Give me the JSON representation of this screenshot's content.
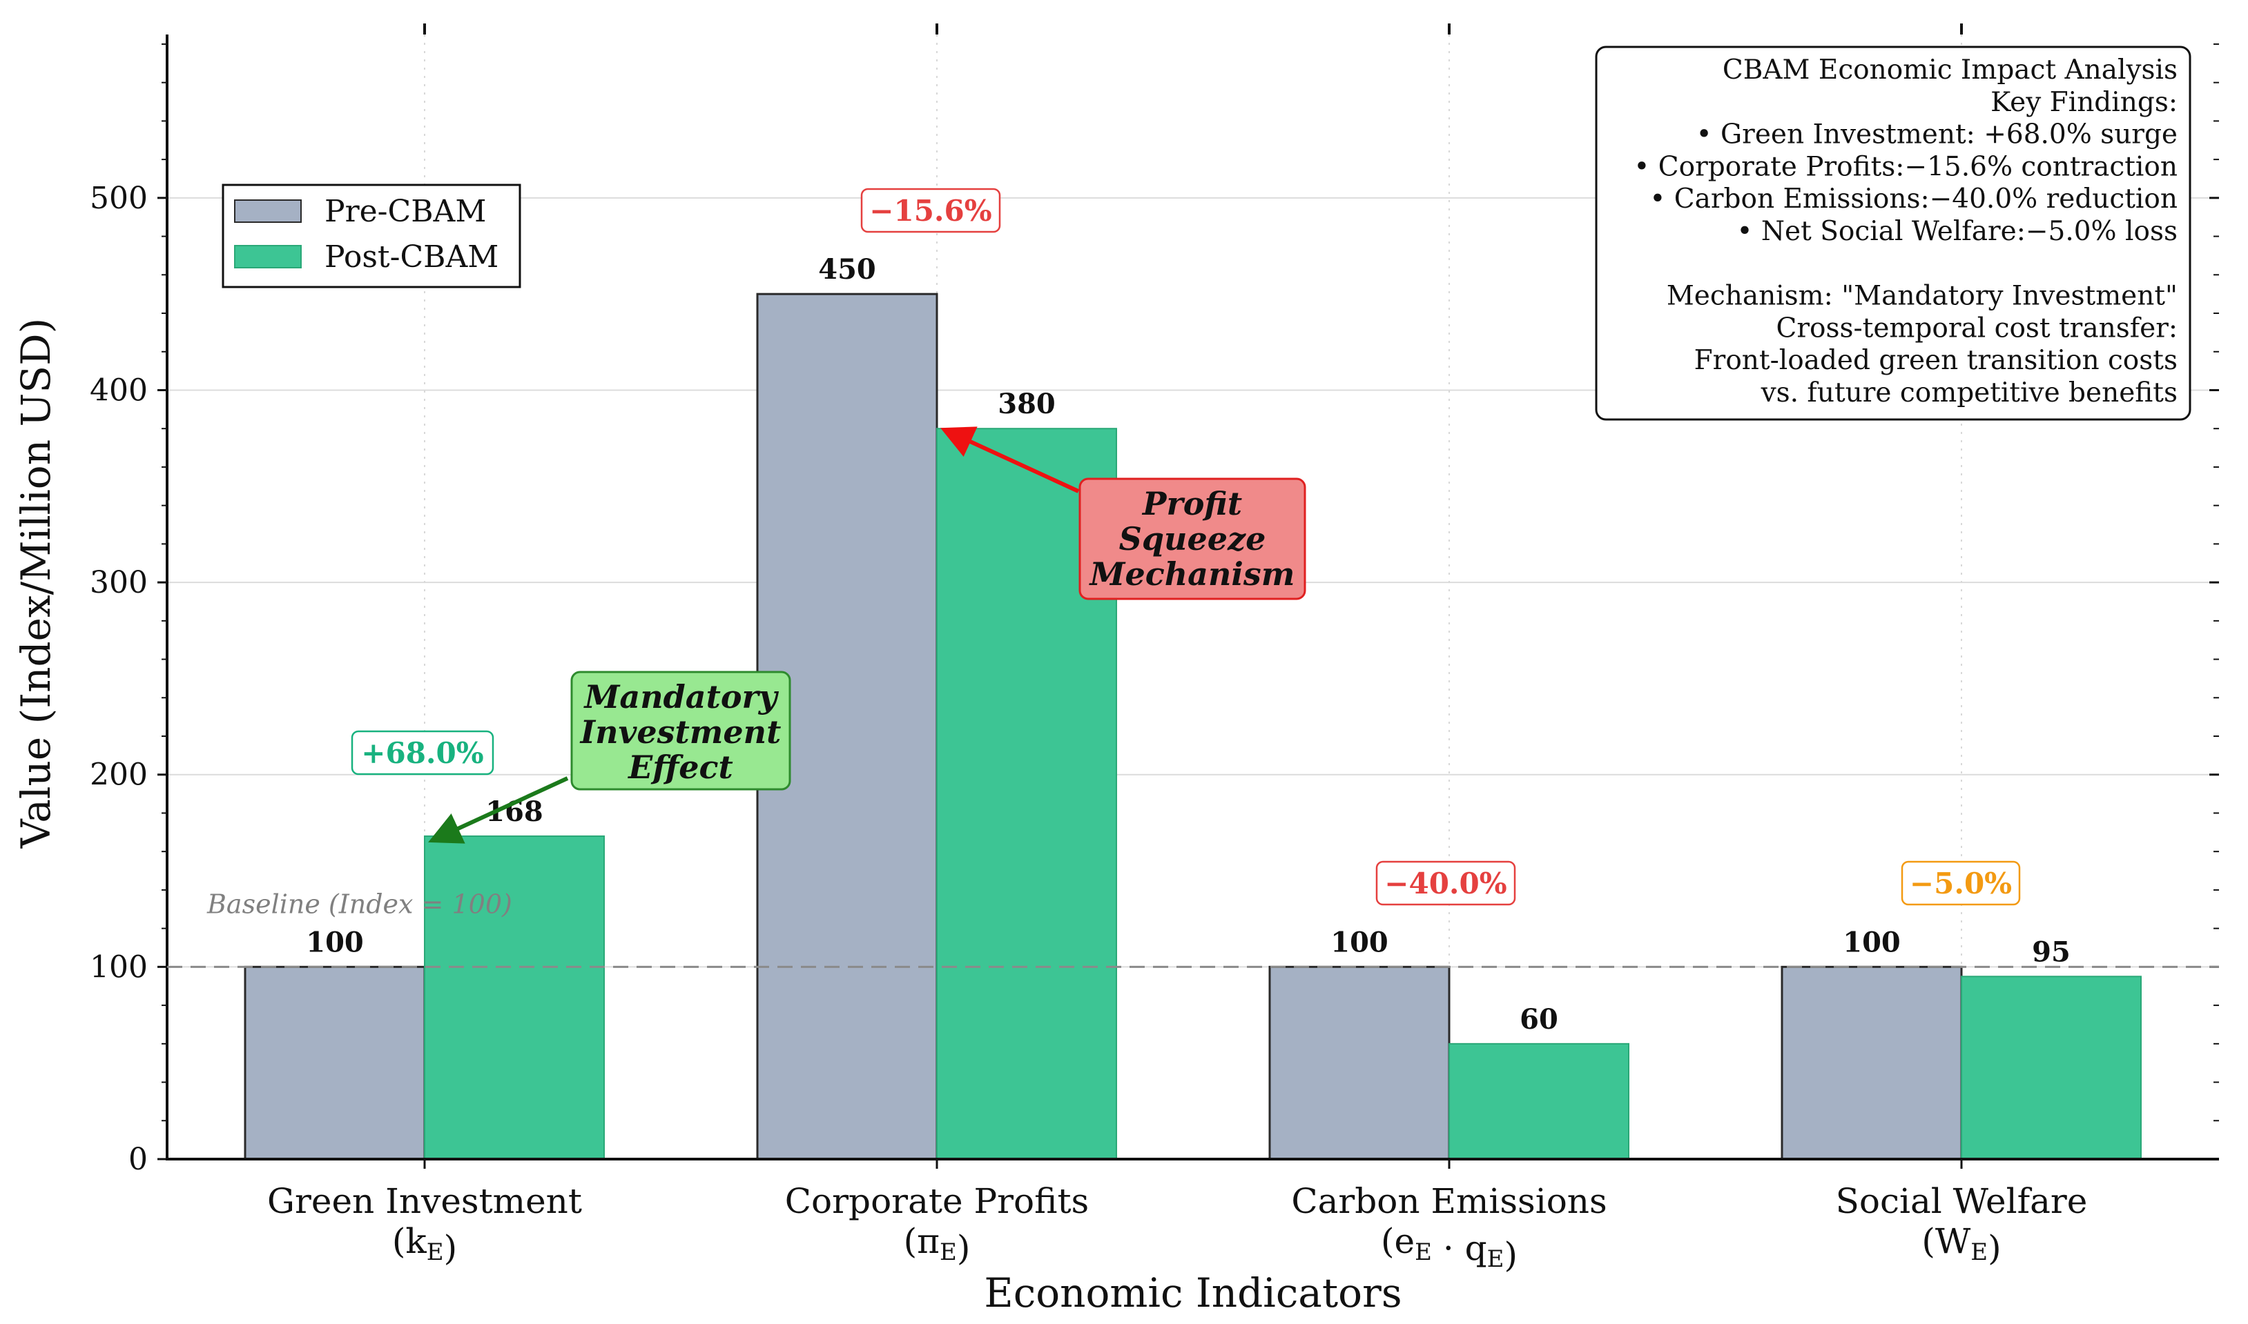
{
  "chart_data": {
    "type": "bar",
    "categories": [
      {
        "name": "Green Investment",
        "symbol": "k",
        "sub": "E"
      },
      {
        "name": "Corporate Profits",
        "symbol": "π",
        "sub": "E"
      },
      {
        "name": "Carbon Emissions",
        "symbol": "e",
        "sub": "E",
        "symbol2": "q",
        "sub2": "E",
        "joiner": " · "
      },
      {
        "name": "Social Welfare",
        "symbol": "W",
        "sub": "E"
      }
    ],
    "series": [
      {
        "name": "Pre-CBAM",
        "color": "#a5b1c4",
        "values": [
          100,
          450,
          100,
          100
        ]
      },
      {
        "name": "Post-CBAM",
        "color": "#3dc594",
        "values": [
          168,
          380,
          60,
          95
        ]
      }
    ],
    "changes": [
      {
        "label": "+68.0%",
        "color": "#18b27f"
      },
      {
        "label": "−15.6%",
        "color": "#e5403f"
      },
      {
        "label": "−40.0%",
        "color": "#e5403f"
      },
      {
        "label": "−5.0%",
        "color": "#f39a12"
      }
    ],
    "xlabel": "Economic Indicators",
    "ylabel": "Value (Index/Million USD)",
    "ylim": [
      0,
      585
    ],
    "yticks": [
      0,
      100,
      200,
      300,
      400,
      500
    ],
    "grid": true,
    "baseline": {
      "value": 100,
      "label": "Baseline (Index = 100)"
    },
    "legend_position": "upper-left",
    "info_box": {
      "lines": [
        "CBAM Economic Impact Analysis",
        "Key Findings:",
        "• Green Investment: +68.0% surge",
        "• Corporate Profits:−15.6% contraction",
        "• Carbon Emissions:−40.0% reduction",
        "• Net Social Welfare:−5.0% loss",
        "",
        "Mechanism: \"Mandatory Investment\"",
        "Cross-temporal cost transfer:",
        "Front-loaded green transition costs",
        "vs. future competitive benefits"
      ]
    },
    "annotations": [
      {
        "lines": [
          "Mandatory",
          "Investment",
          "Effect"
        ],
        "target_category": 0,
        "target_value": 168,
        "fill": "#98e891",
        "edge": "#2e8b2e",
        "arrow": "#1b7a1b"
      },
      {
        "lines": [
          "Profit",
          "Squeeze",
          "Mechanism"
        ],
        "target_category": 1,
        "target_value": 380,
        "fill": "#f08a8a",
        "edge": "#e02020",
        "arrow": "#ee1111"
      }
    ]
  }
}
